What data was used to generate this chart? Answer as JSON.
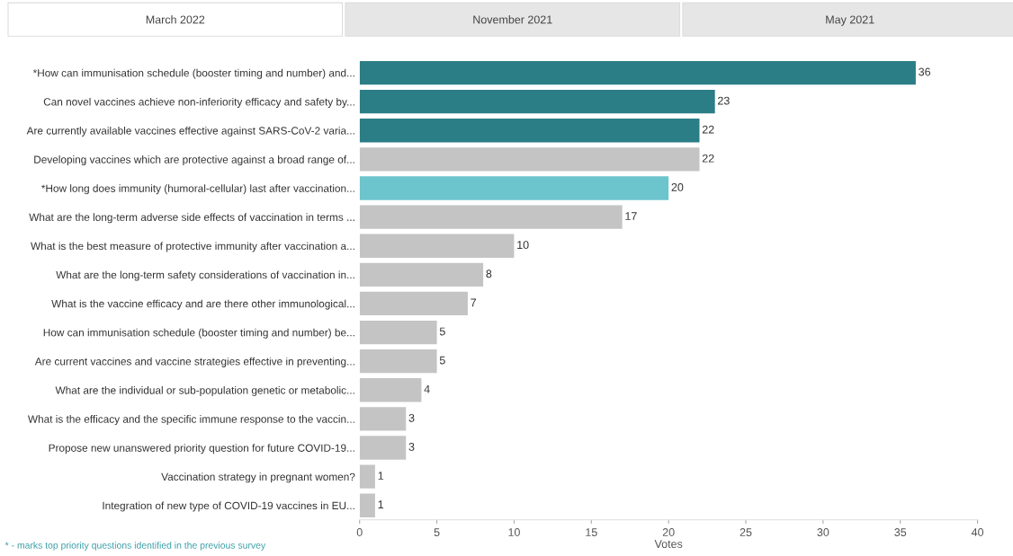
{
  "chart_data": {
    "type": "bar",
    "orientation": "horizontal",
    "xlabel": "Votes",
    "categories": [
      "*How can immunisation schedule (booster timing and number) and...",
      "Can novel vaccines achieve non-inferiority efficacy and safety by...",
      "Are currently available vaccines effective against SARS-CoV-2 varia...",
      "Developing vaccines which are protective against a broad range of...",
      "*How long does immunity (humoral-cellular) last after vaccination...",
      "What are the long-term adverse side effects of vaccination in terms ...",
      "What is the best measure of protective immunity after vaccination a...",
      "What are the long-term safety considerations of vaccination in...",
      "What is the vaccine efficacy and are there other immunological...",
      "How can immunisation schedule (booster timing and number) be...",
      "Are current vaccines and vaccine strategies effective in preventing...",
      "What are the individual or sub-population genetic or metabolic...",
      "What is the efficacy and the specific immune response to the vaccin...",
      "Propose new unanswered priority question for future COVID-19...",
      "Vaccination strategy in pregnant women?",
      "Integration of new type of COVID-19 vaccines in EU..."
    ],
    "values": [
      36,
      23,
      22,
      22,
      20,
      17,
      10,
      8,
      7,
      5,
      5,
      4,
      3,
      3,
      1,
      1
    ],
    "colors": [
      "#2b7d86",
      "#2b7d86",
      "#2b7d86",
      "#c4c4c4",
      "#6cc4cd",
      "#c4c4c4",
      "#c4c4c4",
      "#c4c4c4",
      "#c4c4c4",
      "#c4c4c4",
      "#c4c4c4",
      "#c4c4c4",
      "#c4c4c4",
      "#c4c4c4",
      "#c4c4c4",
      "#c4c4c4"
    ],
    "data_labels": true,
    "xlim": [
      0,
      40
    ],
    "xticks": [
      0,
      5,
      10,
      15,
      20,
      25,
      30,
      35,
      40
    ],
    "grid": false,
    "legend": false,
    "annotations": [
      "March 2022",
      "November 2021",
      "May 2021",
      "* - marks top priority questions identified in the previous survey"
    ]
  }
}
